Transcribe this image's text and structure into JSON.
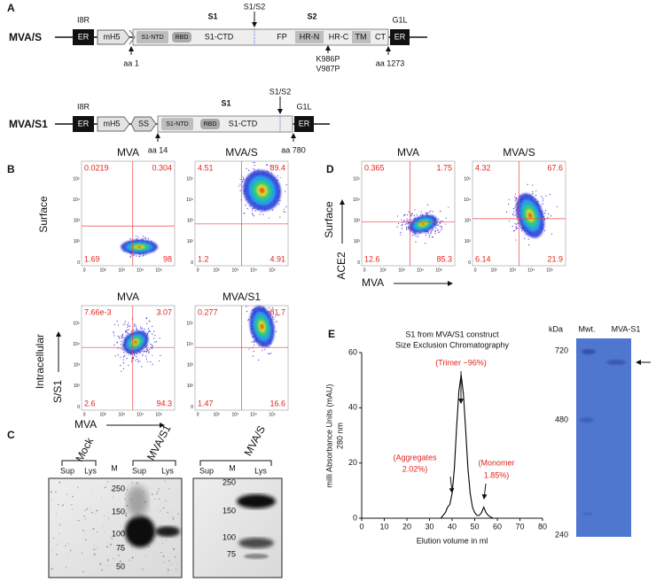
{
  "panel_labels": [
    "A",
    "B",
    "C",
    "D",
    "E"
  ],
  "panel_a": {
    "constructs": [
      {
        "name": "MVA/S",
        "left_gene": "I8R",
        "right_gene": "G1L",
        "boxes": [
          "ER",
          "mH5",
          "S1-NTD",
          "RBD",
          "S1-CTD",
          "FP",
          "HR-N",
          "HR-C",
          "TM",
          "CT",
          "ER"
        ],
        "regions": [
          "S1",
          "S1/S2",
          "S2"
        ],
        "markers": [
          "aa 1",
          "K986P",
          "V987P",
          "aa 1273"
        ]
      },
      {
        "name": "MVA/S1",
        "left_gene": "I8R",
        "right_gene": "G1L",
        "boxes": [
          "ER",
          "mH5",
          "SS",
          "S1-NTD",
          "RBD",
          "S1-CTD",
          "ER"
        ],
        "regions": [
          "S1",
          "S1/S2"
        ],
        "markers": [
          "aa 14",
          "aa 780"
        ]
      }
    ]
  },
  "flow_axis_ticks": [
    "0",
    "10²",
    "10³",
    "10⁴",
    "10⁵"
  ],
  "panel_b": {
    "row_labels": [
      "Surface",
      "Intracellular"
    ],
    "y_axis_label": "S/S1",
    "x_axis_label": "MVA",
    "plots": [
      {
        "title": "MVA",
        "quadrants": [
          "0.0219",
          "0.304",
          "1.69",
          "98"
        ]
      },
      {
        "title": "MVA/S",
        "quadrants": [
          "4.51",
          "89.4",
          "1.2",
          "4.91"
        ]
      },
      {
        "title": "MVA",
        "quadrants": [
          "7.66e-3",
          "3.07",
          "2.6",
          "94.3"
        ]
      },
      {
        "title": "MVA/S1",
        "quadrants": [
          "0.277",
          "81.7",
          "1.47",
          "16.6"
        ]
      }
    ]
  },
  "panel_c": {
    "blot1": {
      "groups": [
        "Mock",
        "MVA/S1"
      ],
      "lanes": [
        "Sup",
        "Lys",
        "M",
        "Sup",
        "Lys"
      ],
      "markers": [
        "250",
        "150",
        "100",
        "75",
        "50"
      ]
    },
    "blot2": {
      "groups": [
        "MVA/S"
      ],
      "lanes": [
        "Sup",
        "M",
        "Lys"
      ],
      "markers": [
        "250",
        "150",
        "100",
        "75"
      ]
    }
  },
  "panel_d": {
    "row_label": "Surface",
    "y_axis_label": "ACE2",
    "x_axis_label": "MVA",
    "plots": [
      {
        "title": "MVA",
        "quadrants": [
          "0.365",
          "1.75",
          "12.6",
          "85.3"
        ]
      },
      {
        "title": "MVA/S",
        "quadrants": [
          "4.32",
          "67.6",
          "6.14",
          "21.9"
        ]
      }
    ]
  },
  "chart_data": {
    "type": "line",
    "title": "S1 from MVA/S1 construct",
    "subtitle": "Size Exclusion Chromatography",
    "x_label": "Elution volume in ml",
    "y_label": [
      "milli Absorbance Units (mAU)",
      "280 nm"
    ],
    "x": [
      35,
      36,
      37,
      38,
      39,
      40,
      41,
      42,
      43,
      44,
      45,
      46,
      47,
      48,
      49,
      50,
      51,
      52,
      53,
      54,
      55,
      56,
      57,
      58,
      60
    ],
    "values": [
      0,
      1,
      2,
      4,
      5,
      9,
      18,
      33,
      46,
      52,
      45,
      32,
      18,
      9,
      4,
      2,
      1,
      1,
      2,
      4,
      2,
      1,
      0.5,
      0,
      0
    ],
    "color": "#000000",
    "xlim": [
      0,
      80
    ],
    "ylim": [
      0,
      60
    ],
    "xticks": [
      0,
      10,
      20,
      30,
      40,
      50,
      60,
      70,
      80
    ],
    "yticks": [
      0,
      20,
      40,
      60
    ],
    "annotations": [
      "(Trimer ~96%)",
      "(Aggregates",
      "2.02%)",
      "(Monomer",
      "1.85%)"
    ]
  },
  "panel_e_gel": {
    "header": [
      "kDa",
      "Mwt.",
      "MVA-S1"
    ],
    "markers": [
      "720",
      "480",
      "240"
    ]
  }
}
